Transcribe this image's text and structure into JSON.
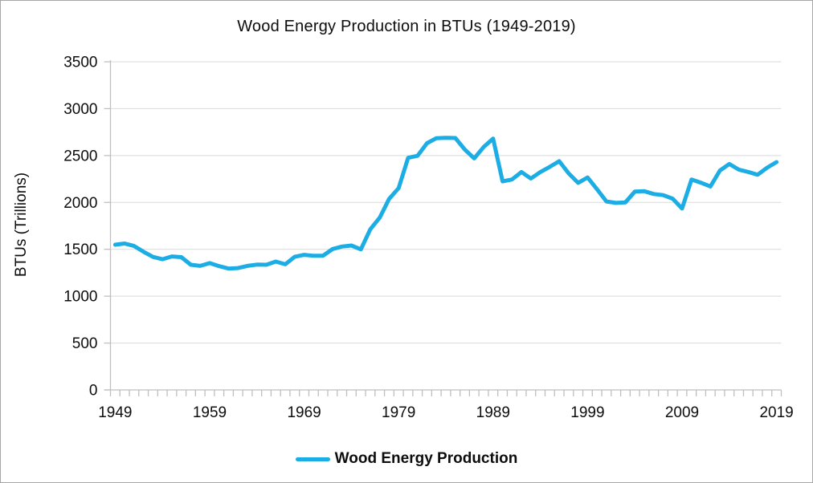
{
  "window": {
    "background": "#FFFFFF",
    "border_color": "#A6A6A6"
  },
  "chart_data": {
    "type": "line",
    "title": "Wood Energy Production in BTUs (1949-2019)",
    "xlabel": "",
    "ylabel": "BTUs (Trillions)",
    "legend": [
      {
        "label": "Wood Energy Production",
        "color": "#1CADE4"
      }
    ],
    "legend_position": "bottom-center",
    "grid": "horizontal",
    "ylim": [
      0,
      3500
    ],
    "y_ticks": [
      0,
      500,
      1000,
      1500,
      2000,
      2500,
      3000,
      3500
    ],
    "x_tick_labels": [
      "1949",
      "1959",
      "1969",
      "1979",
      "1989",
      "1999",
      "2009",
      "2019"
    ],
    "colors": {
      "line": "#1CADE4",
      "gridline": "#D9D9D9",
      "axis": "#BFBFBF",
      "text": "#0D0D0D"
    },
    "x": [
      1949,
      1950,
      1951,
      1952,
      1953,
      1954,
      1955,
      1956,
      1957,
      1958,
      1959,
      1960,
      1961,
      1962,
      1963,
      1964,
      1965,
      1966,
      1967,
      1968,
      1969,
      1970,
      1971,
      1972,
      1973,
      1974,
      1975,
      1976,
      1977,
      1978,
      1979,
      1980,
      1981,
      1982,
      1983,
      1984,
      1985,
      1986,
      1987,
      1988,
      1989,
      1990,
      1991,
      1992,
      1993,
      1994,
      1995,
      1996,
      1997,
      1998,
      1999,
      2000,
      2001,
      2002,
      2003,
      2004,
      2005,
      2006,
      2007,
      2008,
      2009,
      2010,
      2011,
      2012,
      2013,
      2014,
      2015,
      2016,
      2017,
      2018,
      2019
    ],
    "series": [
      {
        "name": "Wood Energy Production",
        "values": [
          1549,
          1562,
          1535,
          1474,
          1419,
          1394,
          1424,
          1416,
          1335,
          1323,
          1353,
          1320,
          1295,
          1300,
          1323,
          1337,
          1335,
          1369,
          1340,
          1420,
          1441,
          1431,
          1432,
          1503,
          1529,
          1540,
          1499,
          1713,
          1838,
          2038,
          2152,
          2476,
          2497,
          2631,
          2685,
          2690,
          2687,
          2565,
          2470,
          2590,
          2680,
          2224,
          2245,
          2324,
          2255,
          2324,
          2380,
          2440,
          2310,
          2209,
          2266,
          2140,
          2010,
          1995,
          2001,
          2115,
          2120,
          2090,
          2078,
          2040,
          1935,
          2245,
          2210,
          2170,
          2340,
          2410,
          2350,
          2325,
          2295,
          2370,
          2430
        ]
      }
    ]
  }
}
